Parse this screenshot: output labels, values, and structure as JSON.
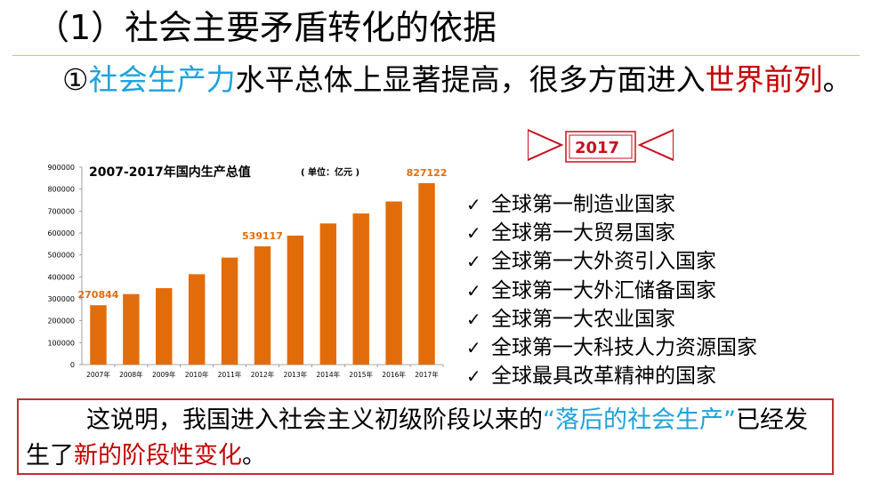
{
  "title": "（1）社会主要矛盾转化的依据",
  "intro": {
    "prefix": "①",
    "highlight": "社会生产力",
    "middle": "水平总体上显著提高，很多方面进入",
    "emphasis": "世界前列",
    "suffix": "。"
  },
  "banner": {
    "year": "2017"
  },
  "chart_data": {
    "type": "bar",
    "title": "2007-2017年国内生产总值",
    "unit": "( 单位：亿元 )",
    "categories": [
      "2007年",
      "2008年",
      "2009年",
      "2010年",
      "2011年",
      "2012年",
      "2013年",
      "2014年",
      "2015年",
      "2016年",
      "2017年"
    ],
    "values": [
      270844,
      321500,
      348500,
      412100,
      487900,
      539117,
      588000,
      643500,
      689000,
      743600,
      827122
    ],
    "ylim": [
      0,
      900000
    ],
    "yticks": [
      "0",
      "100000",
      "200000",
      "300000",
      "400000",
      "500000",
      "600000",
      "700000",
      "800000",
      "900000"
    ],
    "data_labels": {
      "0": "270844",
      "5": "539117",
      "10": "827122"
    },
    "bar_color": "#e36c0a",
    "label_color": "#e36c0a",
    "grid": false
  },
  "achievements": [
    "全球第一制造业国家",
    "全球第一大贸易国家",
    "全球第一大外资引入国家",
    "全球第一大外汇储备国家",
    "全球第一大农业国家",
    "全球第一大科技人力资源国家",
    "全球最具改革精神的国家"
  ],
  "check_glyph": "✓",
  "conclusion": {
    "p1": "这说明，我国进入社会主义初级阶段以来的",
    "quoted": "“落后的社会生产”",
    "p2": "已经发生了",
    "emphasis": "新的阶段性变化",
    "p3": "。"
  },
  "colors": {
    "accent_blue": "#1da2dc",
    "accent_red": "#c40000",
    "bar": "#e36c0a"
  }
}
